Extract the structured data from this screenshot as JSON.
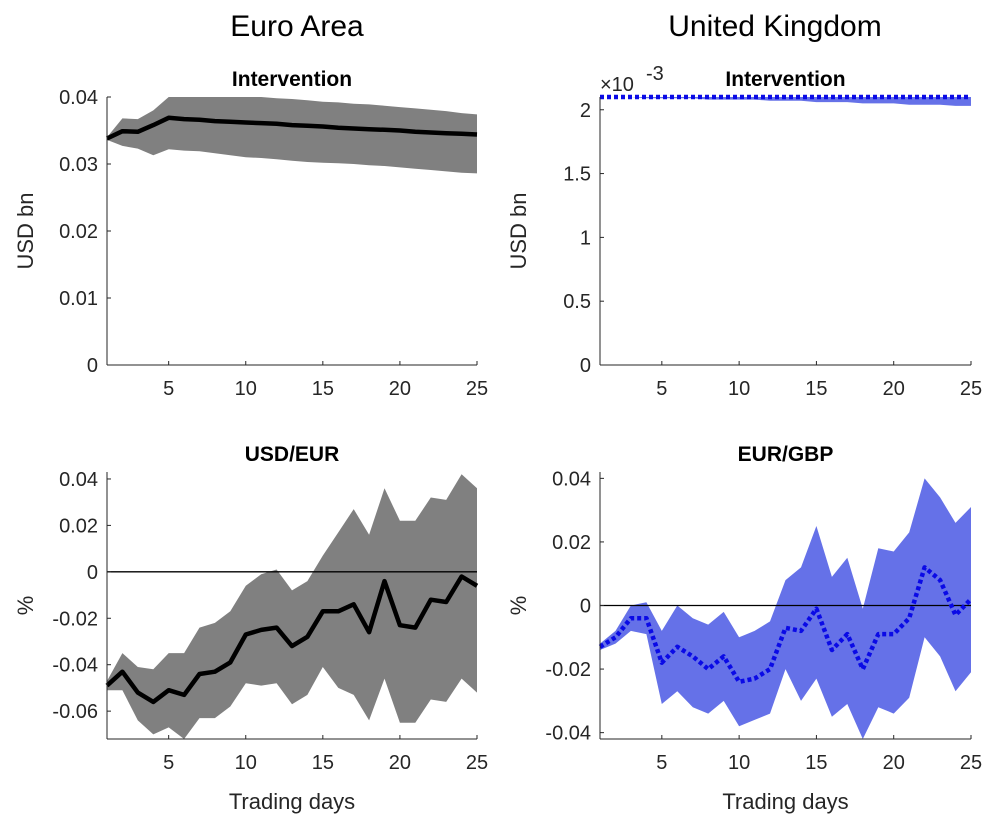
{
  "column_titles": [
    "Euro Area",
    "United Kingdom"
  ],
  "colors": {
    "euro_band": "#808080",
    "euro_line": "#000000",
    "uk_band": "#6571E8",
    "uk_line": "#0A0AE6",
    "axis": "#262626"
  },
  "chart_data": [
    {
      "type": "area",
      "title": "Intervention",
      "xlabel": "",
      "ylabel": "USD bn",
      "xlim": [
        1,
        25
      ],
      "ylim": [
        0,
        0.04
      ],
      "xticks": [
        5,
        10,
        15,
        20,
        25
      ],
      "yticks": [
        0,
        0.01,
        0.02,
        0.03,
        0.04
      ],
      "ytick_labels": [
        "0",
        "0.01",
        "0.02",
        "0.03",
        "0.04"
      ],
      "x": [
        1,
        2,
        3,
        4,
        5,
        6,
        7,
        8,
        9,
        10,
        11,
        12,
        13,
        14,
        15,
        16,
        17,
        18,
        19,
        20,
        21,
        22,
        23,
        24,
        25
      ],
      "series": [
        {
          "values": [
            0.0338,
            0.0349,
            0.0348,
            0.0358,
            0.0369,
            0.0367,
            0.0366,
            0.0364,
            0.0363,
            0.0362,
            0.0361,
            0.036,
            0.0358,
            0.0357,
            0.0356,
            0.0354,
            0.0353,
            0.0352,
            0.0351,
            0.035,
            0.0348,
            0.0347,
            0.0346,
            0.0345,
            0.0344
          ]
        }
      ],
      "band_upper": [
        0.034,
        0.0368,
        0.0367,
        0.038,
        0.0406,
        0.0406,
        0.0405,
        0.0404,
        0.0403,
        0.0402,
        0.04,
        0.0398,
        0.0397,
        0.0395,
        0.0393,
        0.0392,
        0.039,
        0.0389,
        0.0387,
        0.0385,
        0.0383,
        0.0381,
        0.0379,
        0.0376,
        0.0374
      ],
      "band_lower": [
        0.0336,
        0.0327,
        0.0323,
        0.0313,
        0.0322,
        0.032,
        0.0319,
        0.0316,
        0.0313,
        0.031,
        0.0309,
        0.0307,
        0.0305,
        0.0303,
        0.0302,
        0.0301,
        0.03,
        0.0298,
        0.0297,
        0.0295,
        0.0293,
        0.0291,
        0.0289,
        0.0287,
        0.0286
      ],
      "zero_line": false,
      "line_style": "solid"
    },
    {
      "type": "area",
      "title": "Intervention",
      "xlabel": "",
      "ylabel": "USD bn",
      "axis_exponent_base": "×10",
      "axis_exponent_power": "-3",
      "xlim": [
        1,
        25
      ],
      "ylim": [
        0,
        2.1
      ],
      "xticks": [
        5,
        10,
        15,
        20,
        25
      ],
      "yticks": [
        0,
        0.5,
        1,
        1.5,
        2
      ],
      "ytick_labels": [
        "0",
        "0.5",
        "1",
        "1.5",
        "2"
      ],
      "x": [
        1,
        2,
        3,
        4,
        5,
        6,
        7,
        8,
        9,
        10,
        11,
        12,
        13,
        14,
        15,
        16,
        17,
        18,
        19,
        20,
        21,
        22,
        23,
        24,
        25
      ],
      "series": [
        {
          "values": [
            2.1,
            2.1,
            2.1,
            2.1,
            2.1,
            2.1,
            2.1,
            2.1,
            2.1,
            2.1,
            2.1,
            2.1,
            2.1,
            2.1,
            2.1,
            2.1,
            2.1,
            2.1,
            2.1,
            2.1,
            2.1,
            2.1,
            2.1,
            2.1,
            2.1
          ]
        }
      ],
      "band_upper": [
        2.11,
        2.11,
        2.11,
        2.11,
        2.11,
        2.11,
        2.11,
        2.11,
        2.11,
        2.11,
        2.11,
        2.11,
        2.11,
        2.11,
        2.11,
        2.11,
        2.11,
        2.11,
        2.11,
        2.11,
        2.11,
        2.11,
        2.11,
        2.11,
        2.11
      ],
      "band_lower": [
        2.1,
        2.1,
        2.1,
        2.09,
        2.09,
        2.09,
        2.09,
        2.08,
        2.08,
        2.08,
        2.08,
        2.07,
        2.07,
        2.07,
        2.06,
        2.06,
        2.06,
        2.05,
        2.05,
        2.05,
        2.04,
        2.04,
        2.04,
        2.03,
        2.03
      ],
      "zero_line": false,
      "line_style": "dotted"
    },
    {
      "type": "area",
      "title": "USD/EUR",
      "xlabel": "Trading days",
      "ylabel": "%",
      "xlim": [
        1,
        25
      ],
      "ylim": [
        -0.072,
        0.043
      ],
      "xticks": [
        5,
        10,
        15,
        20,
        25
      ],
      "yticks": [
        -0.06,
        -0.04,
        -0.02,
        0,
        0.02,
        0.04
      ],
      "ytick_labels": [
        "-0.06",
        "-0.04",
        "-0.02",
        "0",
        "0.02",
        "0.04"
      ],
      "x": [
        1,
        2,
        3,
        4,
        5,
        6,
        7,
        8,
        9,
        10,
        11,
        12,
        13,
        14,
        15,
        16,
        17,
        18,
        19,
        20,
        21,
        22,
        23,
        24,
        25
      ],
      "series": [
        {
          "values": [
            -0.049,
            -0.043,
            -0.052,
            -0.056,
            -0.051,
            -0.053,
            -0.044,
            -0.043,
            -0.039,
            -0.027,
            -0.025,
            -0.024,
            -0.032,
            -0.028,
            -0.017,
            -0.017,
            -0.014,
            -0.026,
            -0.004,
            -0.023,
            -0.024,
            -0.012,
            -0.013,
            -0.002,
            -0.006
          ]
        }
      ],
      "band_upper": [
        -0.047,
        -0.035,
        -0.041,
        -0.042,
        -0.035,
        -0.035,
        -0.024,
        -0.022,
        -0.017,
        -0.006,
        -0.001,
        0.001,
        -0.008,
        -0.004,
        0.007,
        0.017,
        0.027,
        0.016,
        0.036,
        0.022,
        0.022,
        0.032,
        0.031,
        0.042,
        0.036
      ],
      "band_lower": [
        -0.051,
        -0.051,
        -0.064,
        -0.07,
        -0.067,
        -0.072,
        -0.063,
        -0.063,
        -0.058,
        -0.048,
        -0.049,
        -0.048,
        -0.057,
        -0.053,
        -0.041,
        -0.05,
        -0.053,
        -0.064,
        -0.046,
        -0.065,
        -0.065,
        -0.055,
        -0.056,
        -0.046,
        -0.052
      ],
      "zero_line": true,
      "line_style": "solid"
    },
    {
      "type": "area",
      "title": "EUR/GBP",
      "xlabel": "Trading days",
      "ylabel": "%",
      "xlim": [
        1,
        25
      ],
      "ylim": [
        -0.042,
        0.042
      ],
      "xticks": [
        5,
        10,
        15,
        20,
        25
      ],
      "yticks": [
        -0.04,
        -0.02,
        0,
        0.02,
        0.04
      ],
      "ytick_labels": [
        "-0.04",
        "-0.02",
        "0",
        "0.02",
        "0.04"
      ],
      "x": [
        1,
        2,
        3,
        4,
        5,
        6,
        7,
        8,
        9,
        10,
        11,
        12,
        13,
        14,
        15,
        16,
        17,
        18,
        19,
        20,
        21,
        22,
        23,
        24,
        25
      ],
      "series": [
        {
          "values": [
            -0.013,
            -0.01,
            -0.004,
            -0.004,
            -0.018,
            -0.013,
            -0.016,
            -0.02,
            -0.016,
            -0.024,
            -0.023,
            -0.02,
            -0.007,
            -0.008,
            -0.001,
            -0.014,
            -0.009,
            -0.02,
            -0.009,
            -0.009,
            -0.004,
            0.012,
            0.008,
            -0.003,
            0.002
          ]
        }
      ],
      "band_upper": [
        -0.012,
        -0.008,
        0.0,
        0.001,
        -0.008,
        0.0,
        -0.004,
        -0.006,
        -0.002,
        -0.01,
        -0.008,
        -0.005,
        0.008,
        0.012,
        0.025,
        0.009,
        0.015,
        -0.001,
        0.018,
        0.017,
        0.023,
        0.04,
        0.034,
        0.026,
        0.031
      ],
      "band_lower": [
        -0.014,
        -0.012,
        -0.008,
        -0.009,
        -0.031,
        -0.027,
        -0.032,
        -0.034,
        -0.03,
        -0.038,
        -0.036,
        -0.034,
        -0.02,
        -0.03,
        -0.023,
        -0.035,
        -0.031,
        -0.042,
        -0.032,
        -0.034,
        -0.029,
        -0.01,
        -0.016,
        -0.027,
        -0.021
      ],
      "zero_line": true,
      "line_style": "dotted"
    }
  ]
}
